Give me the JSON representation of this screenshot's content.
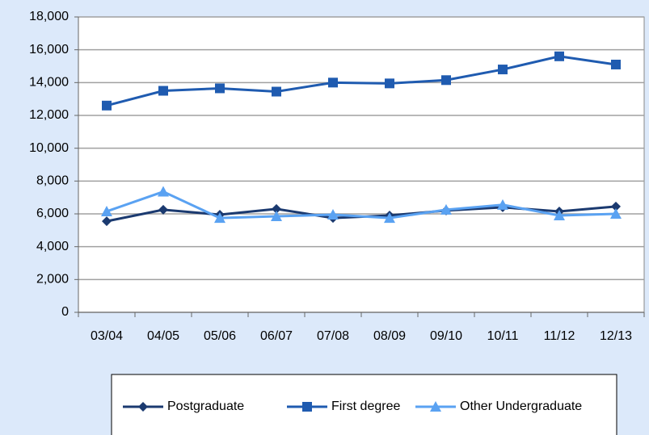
{
  "chart_data": {
    "type": "line",
    "categories": [
      "03/04",
      "04/05",
      "05/06",
      "06/07",
      "07/08",
      "08/09",
      "09/10",
      "10/11",
      "11/12",
      "12/13"
    ],
    "series": [
      {
        "name": "Postgraduate",
        "color": "#1b3a70",
        "marker": "diamond",
        "values": [
          5550,
          6250,
          5950,
          6300,
          5750,
          5900,
          6200,
          6400,
          6150,
          6450
        ]
      },
      {
        "name": "First degree",
        "color": "#1f5bb0",
        "marker": "square",
        "values": [
          12600,
          13500,
          13650,
          13450,
          14000,
          13950,
          14150,
          14800,
          15600,
          15100
        ]
      },
      {
        "name": "Other Undergraduate",
        "color": "#5aa2f2",
        "marker": "triangle",
        "values": [
          6150,
          7350,
          5750,
          5850,
          5950,
          5750,
          6250,
          6550,
          5900,
          6000
        ]
      }
    ],
    "ylim": [
      0,
      18000
    ],
    "yticks": [
      0,
      {
        "value": 2000,
        "label": "2,000"
      },
      {
        "value": 4000,
        "label": "4,000"
      },
      {
        "value": 6000,
        "label": "6,000"
      },
      {
        "value": 8000,
        "label": "8,000"
      },
      {
        "value": 10000,
        "label": "10,000"
      },
      {
        "value": 12000,
        "label": "12,000"
      },
      {
        "value": 14000,
        "label": "14,000"
      },
      {
        "value": 16000,
        "label": "16,000"
      },
      {
        "value": 18000,
        "label": "18,000"
      }
    ],
    "grid": true,
    "legend": "bottom"
  }
}
